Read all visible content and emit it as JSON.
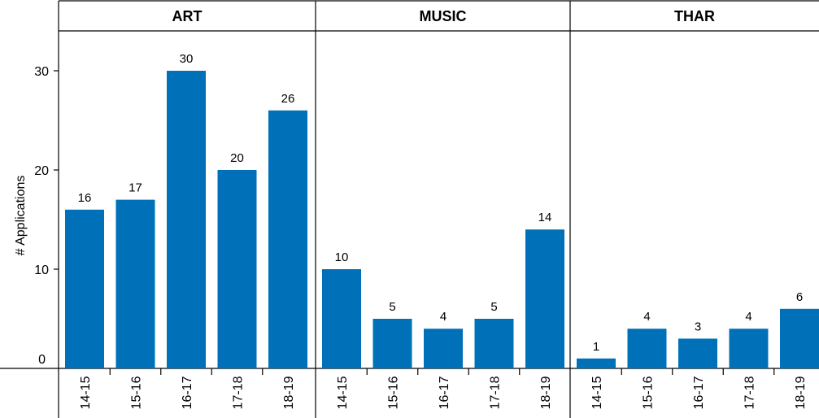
{
  "chart_data": {
    "type": "bar",
    "ylabel": "# Applications",
    "ylim": [
      0,
      34
    ],
    "yticks": [
      0,
      10,
      20,
      30
    ],
    "categories": [
      "14-15",
      "15-16",
      "16-17",
      "17-18",
      "18-19"
    ],
    "bar_color": "#0071b9",
    "panels": [
      {
        "title": "ART",
        "values": [
          16,
          17,
          30,
          20,
          26
        ]
      },
      {
        "title": "MUSIC",
        "values": [
          10,
          5,
          4,
          5,
          14
        ]
      },
      {
        "title": "THAR",
        "values": [
          1,
          4,
          3,
          4,
          6
        ]
      }
    ]
  }
}
